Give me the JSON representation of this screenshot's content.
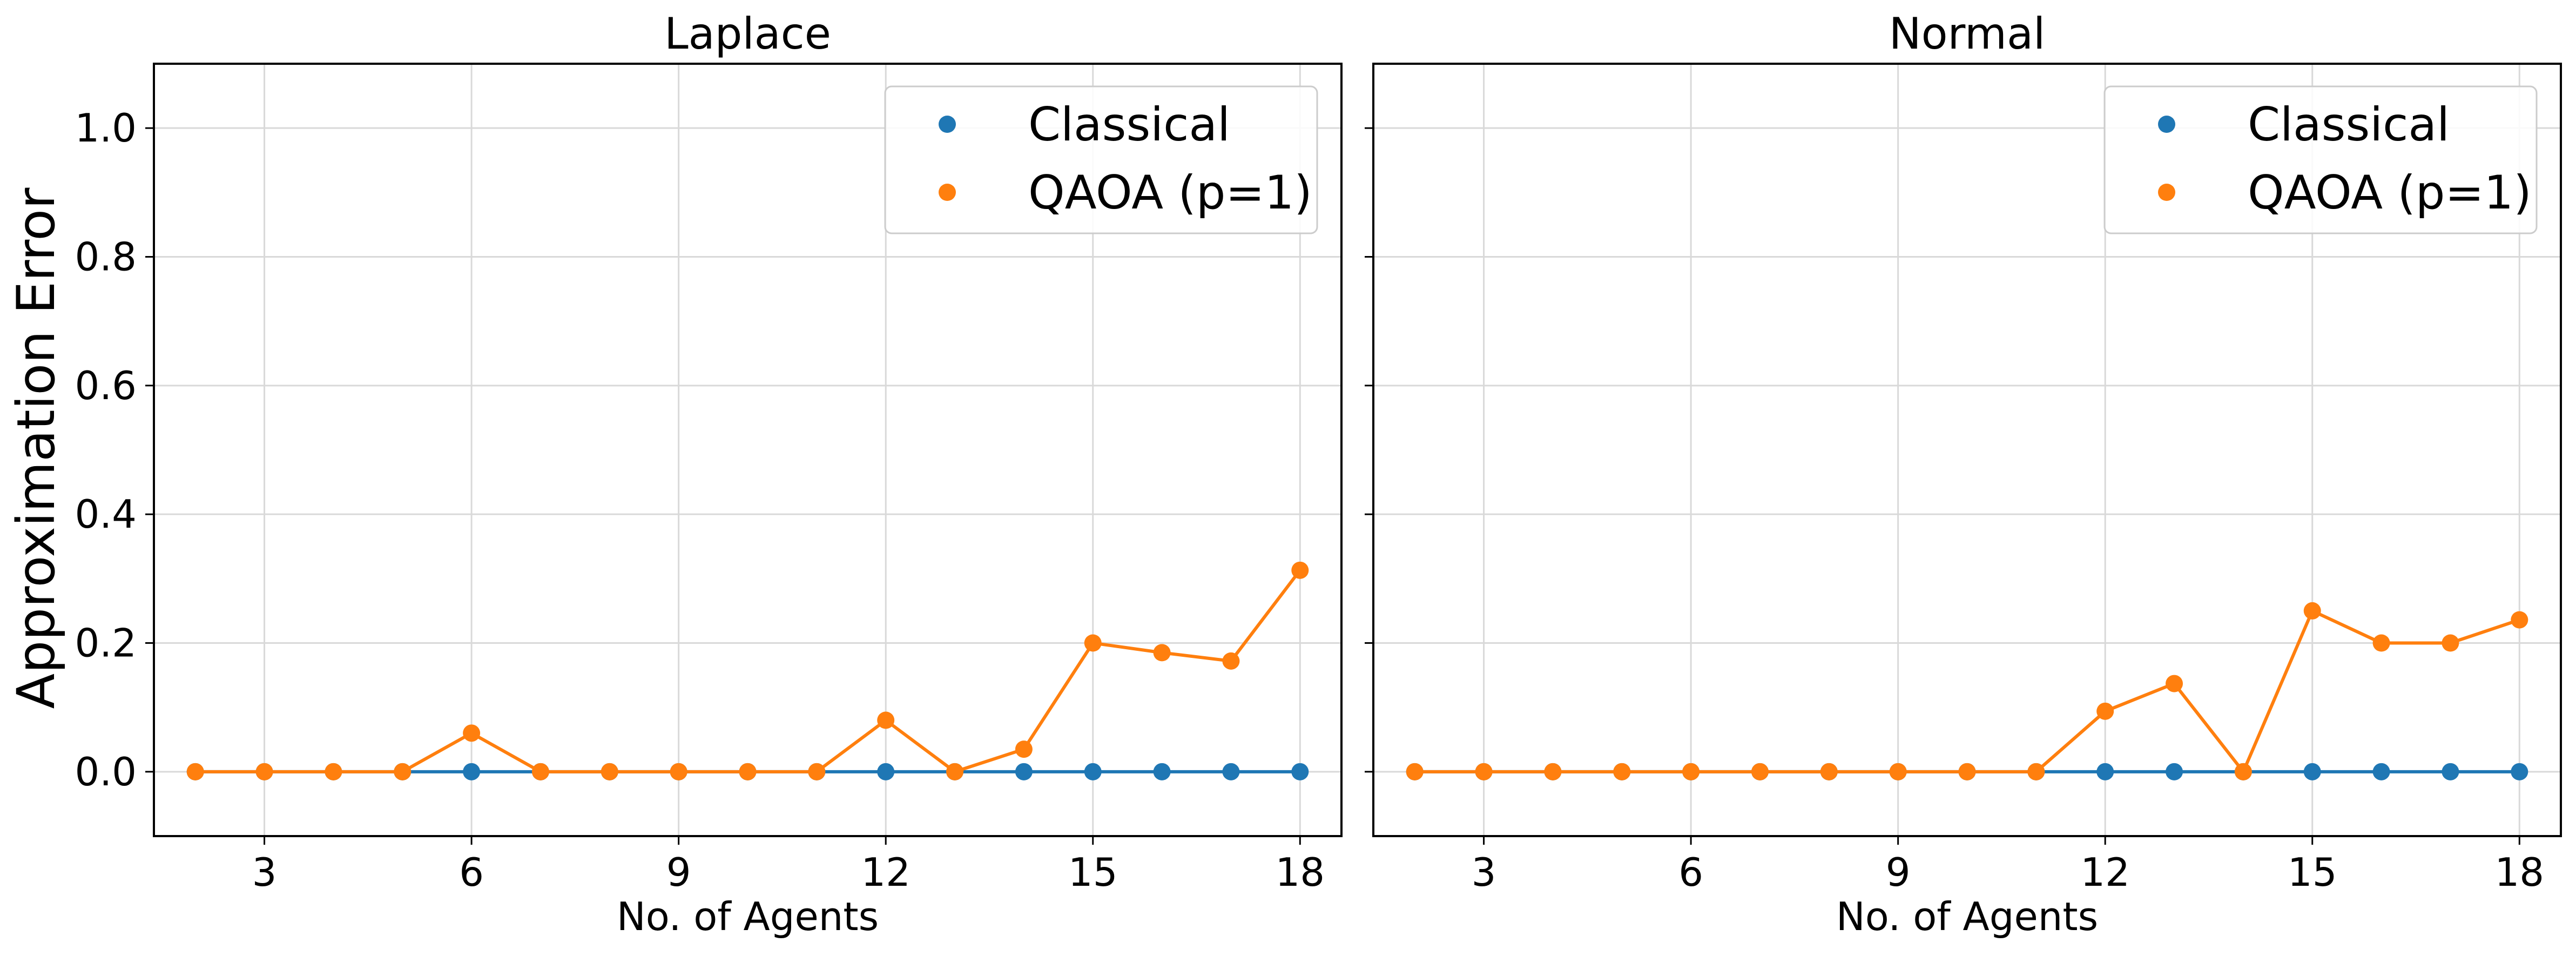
{
  "figure": {
    "ylabel": "Approximation Error"
  },
  "colors": {
    "classical": "#1f77b4",
    "qaoa": "#ff7f0e",
    "grid": "#d9d9d9",
    "axis": "#000000"
  },
  "chart_data": [
    {
      "type": "line",
      "title": "Laplace",
      "xlabel": "No. of Agents",
      "ylabel": "Approximation Error",
      "xlim": [
        1.4,
        18.6
      ],
      "ylim": [
        -0.1,
        1.1
      ],
      "xticks": [
        3,
        6,
        9,
        12,
        15,
        18
      ],
      "yticks": [
        0.0,
        0.2,
        0.4,
        0.6,
        0.8,
        1.0
      ],
      "grid": true,
      "legend": "top-right",
      "x": [
        2,
        3,
        4,
        5,
        6,
        7,
        8,
        9,
        10,
        11,
        12,
        13,
        14,
        15,
        16,
        17,
        18
      ],
      "series": [
        {
          "name": "Classical",
          "color_key": "classical",
          "values": [
            0,
            0,
            0,
            0,
            0,
            0,
            0,
            0,
            0,
            0,
            0,
            0,
            0,
            0,
            0,
            0,
            0
          ]
        },
        {
          "name": "QAOA (p=1)",
          "color_key": "qaoa",
          "values": [
            0,
            0,
            0,
            0,
            0.06,
            0,
            0,
            0,
            0,
            0,
            0.08,
            0,
            0.035,
            0.2,
            0.185,
            0.172,
            0.313
          ]
        }
      ]
    },
    {
      "type": "line",
      "title": "Normal",
      "xlabel": "No. of Agents",
      "ylabel": "",
      "xlim": [
        1.4,
        18.6
      ],
      "ylim": [
        -0.1,
        1.1
      ],
      "xticks": [
        3,
        6,
        9,
        12,
        15,
        18
      ],
      "yticks": [
        0.0,
        0.2,
        0.4,
        0.6,
        0.8,
        1.0
      ],
      "grid": true,
      "legend": "top-right",
      "x": [
        2,
        3,
        4,
        5,
        6,
        7,
        8,
        9,
        10,
        11,
        12,
        13,
        14,
        15,
        16,
        17,
        18
      ],
      "series": [
        {
          "name": "Classical",
          "color_key": "classical",
          "values": [
            0,
            0,
            0,
            0,
            0,
            0,
            0,
            0,
            0,
            0,
            0,
            0,
            0,
            0,
            0,
            0,
            0
          ]
        },
        {
          "name": "QAOA (p=1)",
          "color_key": "qaoa",
          "values": [
            0,
            0,
            0,
            0,
            0,
            0,
            0,
            0,
            0,
            0,
            0.094,
            0.137,
            0,
            0.25,
            0.2,
            0.2,
            0.236
          ]
        }
      ]
    }
  ]
}
